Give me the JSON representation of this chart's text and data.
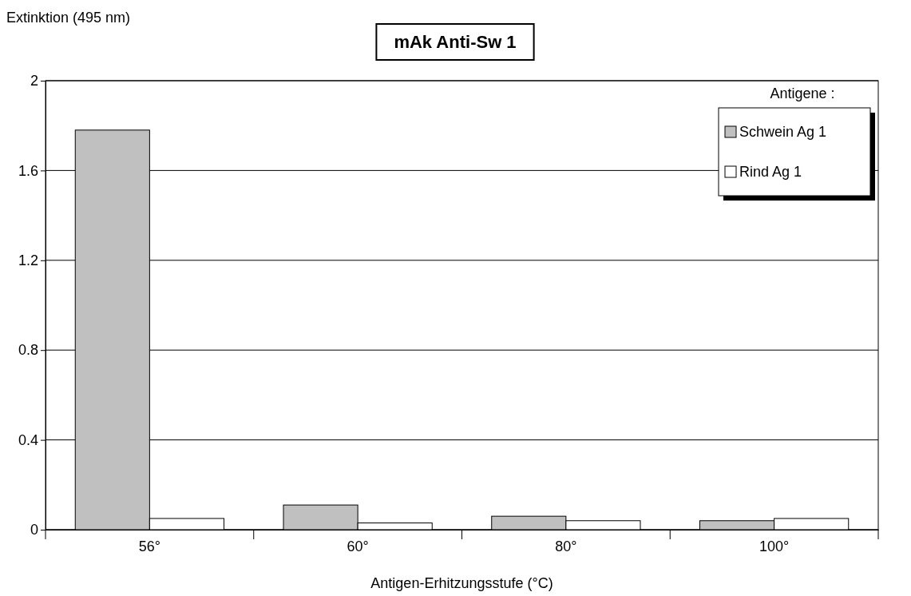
{
  "chart_data": {
    "type": "bar",
    "title": "mAk Anti-Sw 1",
    "xlabel": "Antigen-Erhitzungsstufe (°C)",
    "ylabel": "Extinktion (495 nm)",
    "legend_title": "Antigene :",
    "categories": [
      "56°",
      "60°",
      "80°",
      "100°"
    ],
    "series": [
      {
        "name": "Schwein Ag 1",
        "color": "#c0c0c0",
        "values": [
          1.78,
          0.11,
          0.06,
          0.04
        ]
      },
      {
        "name": "Rind Ag 1",
        "color": "#ffffff",
        "values": [
          0.05,
          0.03,
          0.04,
          0.05
        ]
      }
    ],
    "ylim": [
      0,
      2
    ],
    "yticks": [
      0,
      0.4,
      0.8,
      1.2,
      1.6,
      2
    ],
    "grid": "y",
    "legend": "top right"
  }
}
